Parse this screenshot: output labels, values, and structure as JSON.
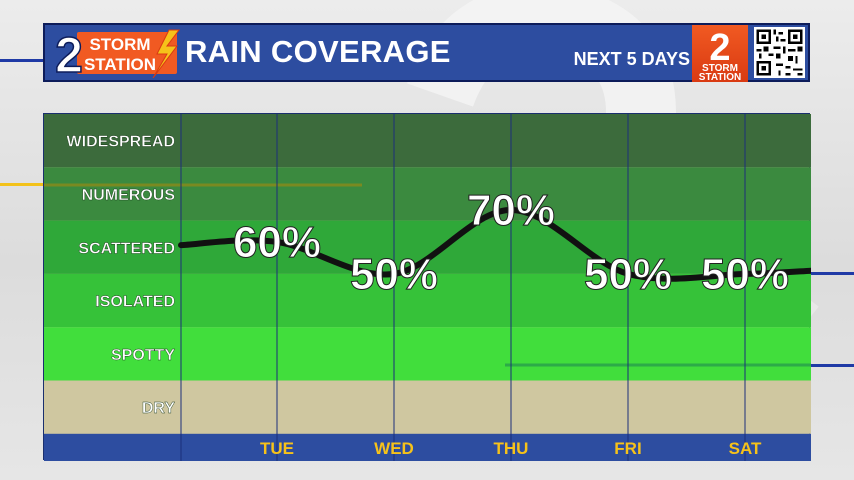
{
  "header": {
    "logo_line1": "STORM",
    "logo_line2": "STATION",
    "logo_numeral": "2",
    "title": "RAIN COVERAGE",
    "subtitle": "NEXT 5 DAYS",
    "badge_numeral": "2",
    "badge_line1": "STORM",
    "badge_line2": "STATION"
  },
  "colors": {
    "header_bg": "#2d4da0",
    "logo_orange": "#f15a22",
    "day_label": "#f6c21a",
    "curve": "#111111",
    "band_widespread": "#3c6b3c",
    "band_numerous": "#3b8a3f",
    "band_scattered": "#2fa839",
    "band_isolated": "#36c239",
    "band_spotty": "#41de3c",
    "band_dry": "#cfc7a0"
  },
  "chart_data": {
    "type": "line",
    "title": "RAIN COVERAGE",
    "categories": [
      "TUE",
      "WED",
      "THU",
      "FRI",
      "SAT"
    ],
    "values": [
      60,
      50,
      70,
      50,
      50
    ],
    "value_labels": [
      "60%",
      "50%",
      "70%",
      "50%",
      "50%"
    ],
    "y_categories": [
      "DRY",
      "SPOTTY",
      "ISOLATED",
      "SCATTERED",
      "NUMEROUS",
      "WIDESPREAD"
    ],
    "ylim": [
      0,
      100
    ],
    "legend": "none"
  }
}
